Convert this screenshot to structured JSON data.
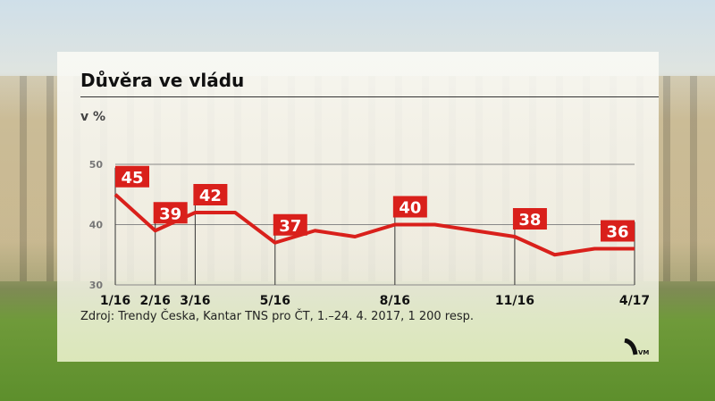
{
  "title": "Důvěra ve vládu",
  "source": "Zdroj: Trendy Česka, Kantar TNS pro ČT, 1.–24. 4. 2017, 1 200 resp.",
  "logo_text": "VM",
  "colors": {
    "line": "#d9201b",
    "label_bg": "#d9201b",
    "grid": "#888888"
  },
  "chart_data": {
    "type": "line",
    "title": "Důvěra ve vládu",
    "ylabel": "v %",
    "ylim": [
      30,
      50
    ],
    "yticks": [
      30,
      40,
      50
    ],
    "grid": true,
    "values": [
      45,
      39,
      42,
      42,
      37,
      39,
      38,
      40,
      40,
      39,
      38,
      35,
      36,
      36
    ],
    "x_labels": [
      "1/16",
      "2/16",
      "3/16",
      "",
      "5/16",
      "",
      "",
      "8/16",
      "",
      "",
      "11/16",
      "",
      "",
      "4/17"
    ],
    "data_labels": [
      45,
      39,
      42,
      null,
      37,
      null,
      null,
      40,
      null,
      null,
      38,
      null,
      null,
      36
    ]
  }
}
